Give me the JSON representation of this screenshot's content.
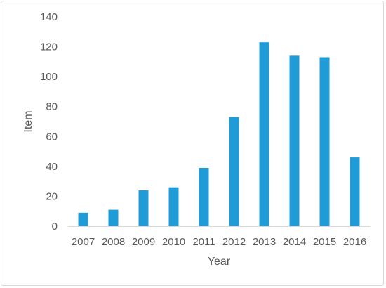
{
  "chart_data": {
    "type": "bar",
    "categories": [
      "2007",
      "2008",
      "2009",
      "2010",
      "2011",
      "2012",
      "2013",
      "2014",
      "2015",
      "2016"
    ],
    "values": [
      9,
      11,
      24,
      26,
      39,
      73,
      123,
      114,
      113,
      46
    ],
    "xlabel": "Year",
    "ylabel": "Item",
    "ylim": [
      0,
      140
    ],
    "yticks": [
      0,
      20,
      40,
      60,
      80,
      100,
      120,
      140
    ],
    "grid": false,
    "legend": "none",
    "bar_color": "#1f9bd7"
  }
}
